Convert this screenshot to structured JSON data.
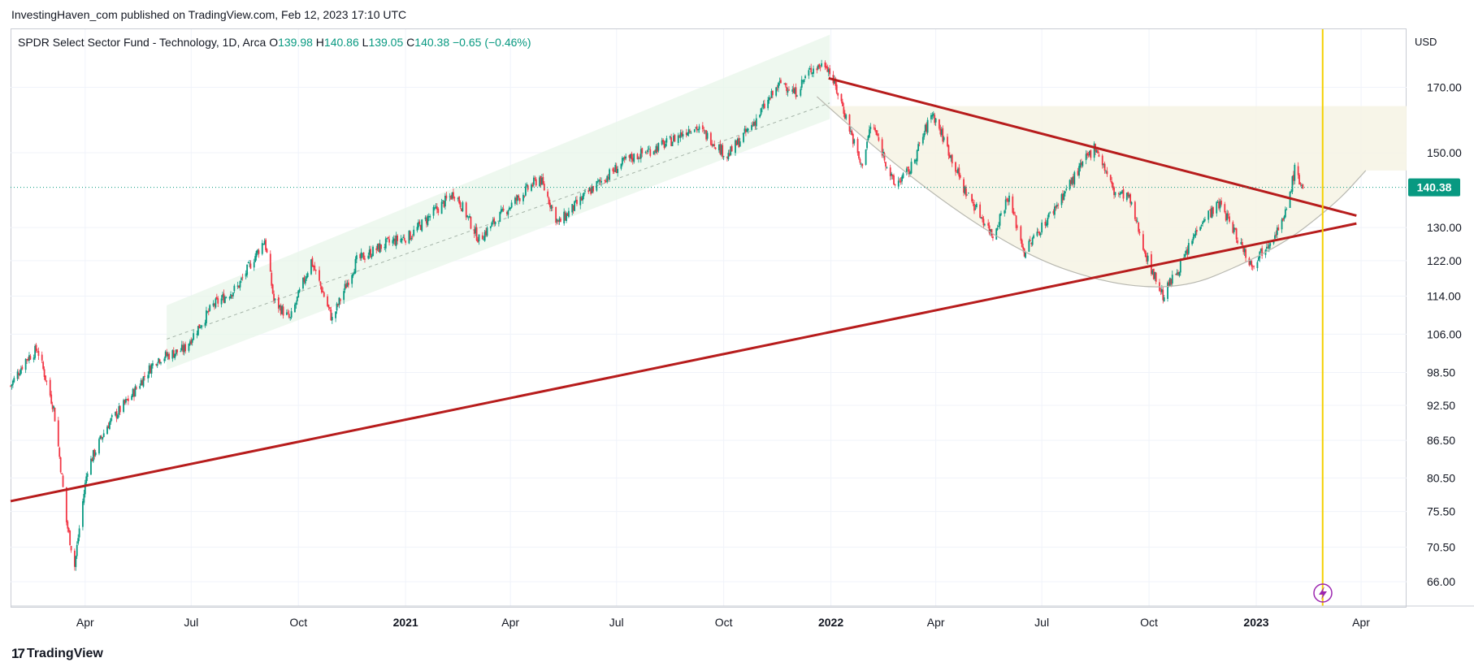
{
  "publisher": "InvestingHaven_com published on TradingView.com, Feb 12, 2023 17:10 UTC",
  "legend": {
    "name": "SPDR Select Sector Fund - Technology, 1D, Arca",
    "o_label": "O",
    "o": "139.98",
    "h_label": "H",
    "h": "140.86",
    "l_label": "L",
    "l": "139.05",
    "c_label": "C",
    "c": "140.38",
    "change": "−0.65 (−0.46%)"
  },
  "currency": "USD",
  "last_price": "140.38",
  "footer": {
    "logo_mark": "17",
    "logo_text": "TradingView"
  },
  "colors": {
    "up": "#089981",
    "down": "#f23645",
    "trendline": "#b71c1c",
    "vline": "#f5d000",
    "price_badge": "#089981",
    "channel_fill": "#e8f5e9",
    "cup_fill": "#f6f4e6"
  },
  "chart_data": {
    "type": "candlestick",
    "title": "SPDR Select Sector Fund - Technology, 1D, Arca",
    "ylabel": "USD",
    "y_scale": "log",
    "ylim": [
      63,
      190
    ],
    "xlim": [
      "2020-01-28",
      "2023-05-10"
    ],
    "y_ticks": [
      "170.00",
      "150.00",
      "140.38",
      "130.00",
      "122.00",
      "114.00",
      "106.00",
      "98.50",
      "92.50",
      "86.50",
      "80.50",
      "75.50",
      "70.50",
      "66.00"
    ],
    "x_ticks": [
      {
        "date": "2020-04-01",
        "label": "Apr",
        "bold": false
      },
      {
        "date": "2020-07-01",
        "label": "Jul",
        "bold": false
      },
      {
        "date": "2020-10-01",
        "label": "Oct",
        "bold": false
      },
      {
        "date": "2021-01-01",
        "label": "2021",
        "bold": true
      },
      {
        "date": "2021-04-01",
        "label": "Apr",
        "bold": false
      },
      {
        "date": "2021-07-01",
        "label": "Jul",
        "bold": false
      },
      {
        "date": "2021-10-01",
        "label": "Oct",
        "bold": false
      },
      {
        "date": "2022-01-01",
        "label": "2022",
        "bold": true
      },
      {
        "date": "2022-04-01",
        "label": "Apr",
        "bold": false
      },
      {
        "date": "2022-07-01",
        "label": "Jul",
        "bold": false
      },
      {
        "date": "2022-10-01",
        "label": "Oct",
        "bold": false
      },
      {
        "date": "2023-01-01",
        "label": "2023",
        "bold": true
      },
      {
        "date": "2023-04-01",
        "label": "Apr",
        "bold": false
      }
    ],
    "price_path": [
      [
        "2020-01-28",
        96
      ],
      [
        "2020-02-10",
        101
      ],
      [
        "2020-02-20",
        103
      ],
      [
        "2020-03-05",
        92
      ],
      [
        "2020-03-16",
        74
      ],
      [
        "2020-03-23",
        68
      ],
      [
        "2020-04-03",
        82
      ],
      [
        "2020-04-20",
        89
      ],
      [
        "2020-05-10",
        94
      ],
      [
        "2020-06-01",
        101
      ],
      [
        "2020-06-25",
        103
      ],
      [
        "2020-07-20",
        112
      ],
      [
        "2020-08-10",
        116
      ],
      [
        "2020-09-02",
        127
      ],
      [
        "2020-09-10",
        113
      ],
      [
        "2020-09-24",
        109
      ],
      [
        "2020-10-12",
        122
      ],
      [
        "2020-10-30",
        109
      ],
      [
        "2020-11-20",
        122
      ],
      [
        "2020-12-15",
        126
      ],
      [
        "2021-01-05",
        128
      ],
      [
        "2021-02-12",
        139
      ],
      [
        "2021-03-05",
        127
      ],
      [
        "2021-03-20",
        132
      ],
      [
        "2021-04-26",
        143
      ],
      [
        "2021-05-12",
        131
      ],
      [
        "2021-06-10",
        140
      ],
      [
        "2021-07-10",
        148
      ],
      [
        "2021-08-15",
        153
      ],
      [
        "2021-09-05",
        158
      ],
      [
        "2021-09-20",
        154
      ],
      [
        "2021-10-04",
        149
      ],
      [
        "2021-10-25",
        158
      ],
      [
        "2021-11-20",
        172
      ],
      [
        "2021-12-01",
        168
      ],
      [
        "2021-12-15",
        176
      ],
      [
        "2021-12-28",
        178
      ],
      [
        "2022-01-10",
        165
      ],
      [
        "2022-01-27",
        146
      ],
      [
        "2022-02-05",
        159
      ],
      [
        "2022-02-24",
        141
      ],
      [
        "2022-03-10",
        145
      ],
      [
        "2022-03-29",
        162
      ],
      [
        "2022-04-25",
        140
      ],
      [
        "2022-05-20",
        128
      ],
      [
        "2022-06-02",
        138
      ],
      [
        "2022-06-16",
        124
      ],
      [
        "2022-07-10",
        134
      ],
      [
        "2022-08-16",
        152
      ],
      [
        "2022-09-01",
        139
      ],
      [
        "2022-09-13",
        138
      ],
      [
        "2022-09-30",
        122
      ],
      [
        "2022-10-13",
        114
      ],
      [
        "2022-11-01",
        123
      ],
      [
        "2022-11-15",
        132
      ],
      [
        "2022-12-01",
        136
      ],
      [
        "2022-12-15",
        128
      ],
      [
        "2022-12-28",
        121
      ],
      [
        "2023-01-10",
        126
      ],
      [
        "2023-01-25",
        132
      ],
      [
        "2023-02-03",
        145
      ],
      [
        "2023-02-10",
        140.38
      ]
    ],
    "overlays": {
      "rising_channel": {
        "x": [
          "2020-06-10",
          "2021-12-31"
        ],
        "upper": [
          112,
          188
        ],
        "middle": [
          105,
          165
        ],
        "lower": [
          99,
          160
        ]
      },
      "resistance_line": {
        "points": [
          [
            "2021-12-30",
            173
          ],
          [
            "2023-03-28",
            133
          ]
        ]
      },
      "support_line": {
        "points": [
          [
            "2020-01-28",
            77
          ],
          [
            "2023-03-28",
            131
          ]
        ]
      },
      "cup_arc": {
        "points": [
          [
            "2021-12-20",
            167
          ],
          [
            "2022-05-01",
            128
          ],
          [
            "2022-10-05",
            113
          ],
          [
            "2023-01-15",
            124
          ],
          [
            "2023-03-10",
            136
          ],
          [
            "2023-04-05",
            145
          ]
        ]
      },
      "cup_zone": {
        "x": [
          "2022-01-01",
          "2023-05-10"
        ],
        "top": 164
      },
      "vertical_line": {
        "date": "2023-02-27"
      }
    }
  }
}
